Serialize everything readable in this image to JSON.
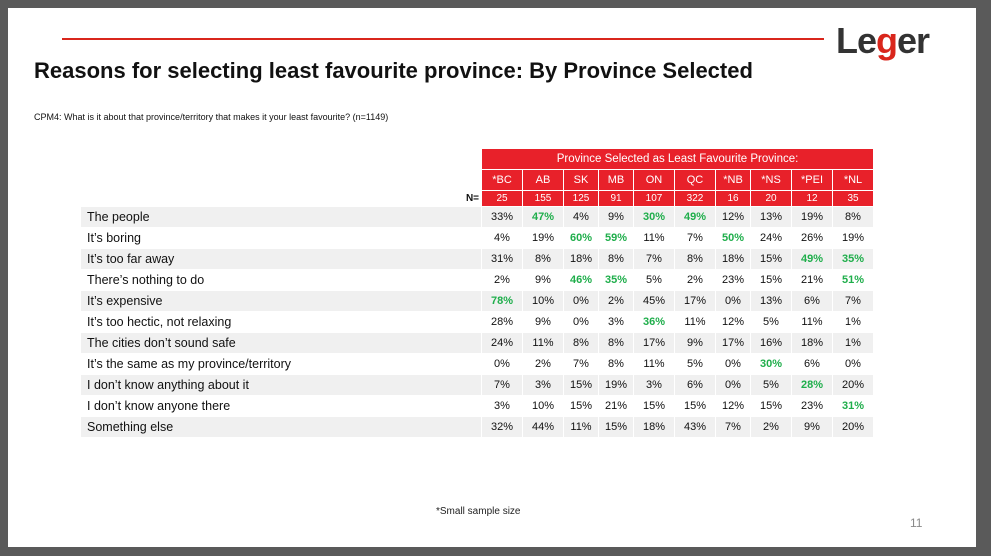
{
  "logo": {
    "pre": "Le",
    "g": "g",
    "post": "er"
  },
  "title": "Reasons for selecting least favourite province: By Province Selected",
  "question": "CPM4: What is it about that province/territory that makes it your least favourite? (n=1149)",
  "table": {
    "header": "Province Selected as Least Favourite Province:",
    "n_label": "N=",
    "provinces": [
      "*BC",
      "AB",
      "SK",
      "MB",
      "ON",
      "QC",
      "*NB",
      "*NS",
      "*PEI",
      "*NL"
    ],
    "n": [
      "25",
      "155",
      "125",
      "91",
      "107",
      "322",
      "16",
      "20",
      "12",
      "35"
    ],
    "rows": [
      {
        "label": "The people",
        "values": [
          "33%",
          "47%",
          "4%",
          "9%",
          "30%",
          "49%",
          "12%",
          "13%",
          "19%",
          "8%"
        ],
        "highlight": [
          1,
          4,
          5
        ]
      },
      {
        "label": "It’s boring",
        "values": [
          "4%",
          "19%",
          "60%",
          "59%",
          "11%",
          "7%",
          "50%",
          "24%",
          "26%",
          "19%"
        ],
        "highlight": [
          2,
          3,
          6
        ]
      },
      {
        "label": "It’s too far away",
        "values": [
          "31%",
          "8%",
          "18%",
          "8%",
          "7%",
          "8%",
          "18%",
          "15%",
          "49%",
          "35%"
        ],
        "highlight": [
          8,
          9
        ]
      },
      {
        "label": "There’s nothing to do",
        "values": [
          "2%",
          "9%",
          "46%",
          "35%",
          "5%",
          "2%",
          "23%",
          "15%",
          "21%",
          "51%"
        ],
        "highlight": [
          2,
          3,
          9
        ]
      },
      {
        "label": "It’s expensive",
        "values": [
          "78%",
          "10%",
          "0%",
          "2%",
          "45%",
          "17%",
          "0%",
          "13%",
          "6%",
          "7%"
        ],
        "highlight": [
          0
        ]
      },
      {
        "label": "It’s too hectic, not relaxing",
        "values": [
          "28%",
          "9%",
          "0%",
          "3%",
          "36%",
          "11%",
          "12%",
          "5%",
          "11%",
          "1%"
        ],
        "highlight": [
          4
        ]
      },
      {
        "label": "The cities don’t sound safe",
        "values": [
          "24%",
          "11%",
          "8%",
          "8%",
          "17%",
          "9%",
          "17%",
          "16%",
          "18%",
          "1%"
        ],
        "highlight": []
      },
      {
        "label": "It’s the same as my province/territory",
        "values": [
          "0%",
          "2%",
          "7%",
          "8%",
          "11%",
          "5%",
          "0%",
          "30%",
          "6%",
          "0%"
        ],
        "highlight": [
          7
        ]
      },
      {
        "label": "I don’t know anything about it",
        "values": [
          "7%",
          "3%",
          "15%",
          "19%",
          "3%",
          "6%",
          "0%",
          "5%",
          "28%",
          "20%"
        ],
        "highlight": [
          8
        ]
      },
      {
        "label": "I don’t know anyone there",
        "values": [
          "3%",
          "10%",
          "15%",
          "21%",
          "15%",
          "15%",
          "12%",
          "15%",
          "23%",
          "31%"
        ],
        "highlight": [
          9
        ]
      },
      {
        "label": "Something else",
        "values": [
          "32%",
          "44%",
          "11%",
          "15%",
          "18%",
          "43%",
          "7%",
          "2%",
          "9%",
          "20%"
        ],
        "highlight": []
      }
    ]
  },
  "footnote": "*Small sample size",
  "page_number": "11",
  "colors": {
    "accent": "#e8212a",
    "highlight": "#1fae4b"
  }
}
